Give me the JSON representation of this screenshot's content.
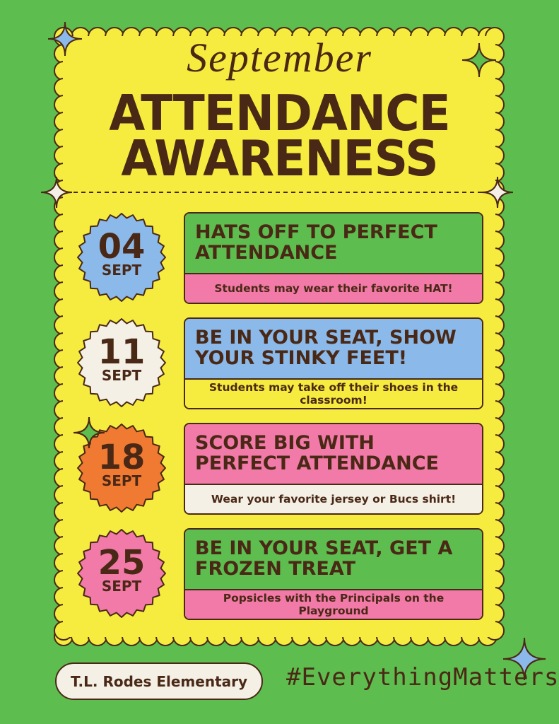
{
  "header": {
    "script": "September",
    "title_lines": [
      "ATTENDANCE",
      "AWARENESS"
    ]
  },
  "events": [
    {
      "day": "04",
      "month": "SEPT",
      "title": "HATS OFF TO PERFECT ATTENDANCE",
      "note": "Students may wear their favorite HAT!"
    },
    {
      "day": "11",
      "month": "SEPT",
      "title": "BE IN YOUR SEAT, SHOW YOUR STINKY FEET!",
      "note": "Students may take off their shoes in the classroom!"
    },
    {
      "day": "18",
      "month": "SEPT",
      "title": "SCORE BIG WITH PERFECT ATTENDANCE",
      "note": "Wear your favorite jersey or Bucs shirt!"
    },
    {
      "day": "25",
      "month": "SEPT",
      "title": "BE IN YOUR SEAT, GET A FROZEN TREAT",
      "note": "Popsicles with the Principals on the Playground"
    }
  ],
  "footer": {
    "school": "T.L. Rodes Elementary",
    "hashtag": "#EverythingMatters"
  }
}
